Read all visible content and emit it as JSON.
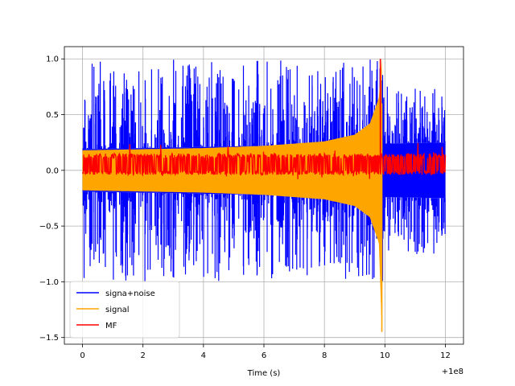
{
  "chart_data": {
    "type": "line",
    "xlabel": "Time (s)",
    "ylabel": "",
    "xlim": [
      -0.6,
      12.6
    ],
    "ylim": [
      -1.56,
      1.11
    ],
    "x_offset_label": "+1e8",
    "xticks": [
      0,
      2,
      4,
      6,
      8,
      10,
      12
    ],
    "xtick_labels": [
      "0",
      "2",
      "4",
      "6",
      "8",
      "10",
      "12"
    ],
    "yticks": [
      -1.5,
      -1.0,
      -0.5,
      0.0,
      0.5,
      1.0
    ],
    "ytick_labels": [
      "−1.5",
      "−1.0",
      "−0.5",
      "0.0",
      "0.5",
      "1.0"
    ],
    "grid": true,
    "legend_position": "lower left",
    "signal_end_x": 9.9,
    "series": [
      {
        "name": "signa+noise",
        "color": "#0000ff",
        "shape": "noisy_band",
        "x_range": [
          0,
          12
        ],
        "upper": [
          [
            0,
            0.19
          ],
          [
            2,
            0.2
          ],
          [
            4,
            0.21
          ],
          [
            6,
            0.22
          ],
          [
            8,
            0.24
          ],
          [
            9.9,
            0.27
          ],
          [
            10,
            0.24
          ],
          [
            12,
            0.25
          ]
        ],
        "lower": [
          [
            0,
            -0.19
          ],
          [
            2,
            -0.2
          ],
          [
            4,
            -0.21
          ],
          [
            6,
            -0.22
          ],
          [
            8,
            -0.24
          ],
          [
            9.9,
            -0.27
          ],
          [
            10,
            -0.24
          ],
          [
            12,
            -0.25
          ]
        ],
        "peaks_max": 1.0,
        "peaks_min": -1.0
      },
      {
        "name": "signal",
        "color": "#ffa500",
        "shape": "chirp_envelope",
        "x_range": [
          0,
          9.9
        ],
        "upper": [
          [
            0,
            0.18
          ],
          [
            2,
            0.19
          ],
          [
            4,
            0.2
          ],
          [
            6,
            0.22
          ],
          [
            8,
            0.26
          ],
          [
            9,
            0.32
          ],
          [
            9.5,
            0.42
          ],
          [
            9.8,
            0.65
          ],
          [
            9.9,
            1.0
          ]
        ],
        "lower": [
          [
            0,
            -0.18
          ],
          [
            2,
            -0.19
          ],
          [
            4,
            -0.2
          ],
          [
            6,
            -0.22
          ],
          [
            8,
            -0.26
          ],
          [
            9,
            -0.32
          ],
          [
            9.5,
            -0.42
          ],
          [
            9.8,
            -0.65
          ],
          [
            9.9,
            -1.45
          ]
        ]
      },
      {
        "name": "MF",
        "color": "#ff0000",
        "shape": "noisy_band",
        "x_range": [
          0,
          12
        ],
        "upper": [
          [
            0,
            0.1
          ],
          [
            12,
            0.1
          ]
        ],
        "lower": [
          [
            0,
            0.0
          ],
          [
            12,
            0.0
          ]
        ],
        "peak_x": 9.85,
        "peak_y": 1.0
      }
    ]
  }
}
